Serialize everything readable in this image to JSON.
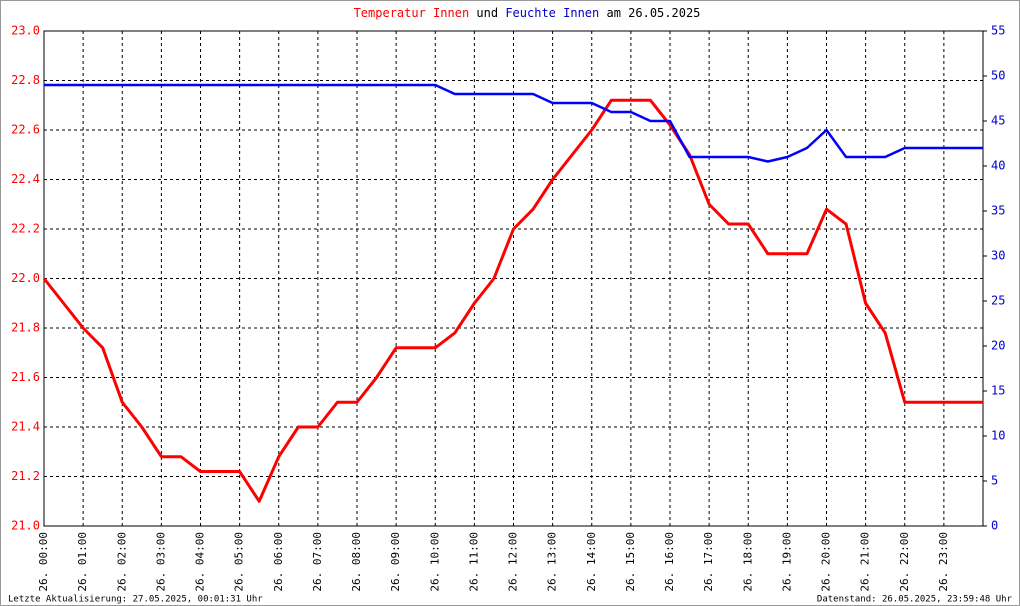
{
  "chart_data": {
    "type": "line",
    "title_connector": "und",
    "title_date": "am 26.05.2025",
    "footer_left": "Letzte Aktualisierung: 27.05.2025, 00:01:31 Uhr",
    "footer_right": "Datenstand: 26.05.2025, 23:59:48 Uhr",
    "x": [
      0,
      0.5,
      1,
      1.5,
      2,
      2.5,
      3,
      3.5,
      4,
      4.5,
      5,
      5.5,
      6,
      6.5,
      7,
      7.5,
      8,
      8.5,
      9,
      9.5,
      10,
      10.5,
      11,
      11.5,
      12,
      12.5,
      13,
      13.5,
      14,
      14.5,
      15,
      15.5,
      16,
      16.5,
      17,
      17.5,
      18,
      18.5,
      19,
      19.5,
      20,
      20.5,
      21,
      21.5,
      22,
      22.5,
      23,
      23.5,
      24
    ],
    "series": [
      {
        "name": "Temperatur Innen",
        "color": "#ff0000",
        "axis": "y",
        "values": [
          22.0,
          21.9,
          21.8,
          21.72,
          21.5,
          21.4,
          21.28,
          21.28,
          21.22,
          21.22,
          21.22,
          21.1,
          21.28,
          21.4,
          21.4,
          21.5,
          21.5,
          21.6,
          21.72,
          21.72,
          21.72,
          21.78,
          21.9,
          22.0,
          22.2,
          22.28,
          22.4,
          22.5,
          22.6,
          22.72,
          22.72,
          22.72,
          22.62,
          22.5,
          22.3,
          22.22,
          22.22,
          22.1,
          22.1,
          22.1,
          22.28,
          22.22,
          21.9,
          21.78,
          21.5,
          21.5,
          21.5,
          21.5,
          21.5
        ]
      },
      {
        "name": "Feuchte Innen",
        "color": "#0000ff",
        "axis": "y2",
        "values": [
          49,
          49,
          49,
          49,
          49,
          49,
          49,
          49,
          49,
          49,
          49,
          49,
          49,
          49,
          49,
          49,
          49,
          49,
          49,
          49,
          49,
          48,
          48,
          48,
          48,
          48,
          47,
          47,
          47,
          46,
          46,
          45,
          45,
          41,
          41,
          41,
          41,
          40.5,
          41,
          42,
          44,
          41,
          41,
          41,
          42,
          42,
          42,
          42,
          42
        ]
      }
    ],
    "xlim": [
      0,
      24
    ],
    "xticks": [
      {
        "value": 0,
        "label": "26. 00:00"
      },
      {
        "value": 1,
        "label": "26. 01:00"
      },
      {
        "value": 2,
        "label": "26. 02:00"
      },
      {
        "value": 3,
        "label": "26. 03:00"
      },
      {
        "value": 4,
        "label": "26. 04:00"
      },
      {
        "value": 5,
        "label": "26. 05:00"
      },
      {
        "value": 6,
        "label": "26. 06:00"
      },
      {
        "value": 7,
        "label": "26. 07:00"
      },
      {
        "value": 8,
        "label": "26. 08:00"
      },
      {
        "value": 9,
        "label": "26. 09:00"
      },
      {
        "value": 10,
        "label": "26. 10:00"
      },
      {
        "value": 11,
        "label": "26. 11:00"
      },
      {
        "value": 12,
        "label": "26. 12:00"
      },
      {
        "value": 13,
        "label": "26. 13:00"
      },
      {
        "value": 14,
        "label": "26. 14:00"
      },
      {
        "value": 15,
        "label": "26. 15:00"
      },
      {
        "value": 16,
        "label": "26. 16:00"
      },
      {
        "value": 17,
        "label": "26. 17:00"
      },
      {
        "value": 18,
        "label": "26. 18:00"
      },
      {
        "value": 19,
        "label": "26. 19:00"
      },
      {
        "value": 20,
        "label": "26. 20:00"
      },
      {
        "value": 21,
        "label": "26. 21:00"
      },
      {
        "value": 22,
        "label": "26. 22:00"
      },
      {
        "value": 23,
        "label": "26. 23:00"
      }
    ],
    "ylim": [
      21.0,
      23.0
    ],
    "yticks": [
      {
        "value": 21,
        "label": "21.0"
      },
      21.2,
      21.4,
      21.6,
      21.8,
      {
        "value": 22,
        "label": "22.0"
      },
      22.2,
      22.4,
      22.6,
      22.8,
      {
        "value": 23,
        "label": "23.0"
      }
    ],
    "y2lim": [
      0,
      55
    ],
    "y2ticks": [
      0,
      5,
      10,
      15,
      20,
      25,
      30,
      35,
      40,
      45,
      50,
      55
    ],
    "grid": true
  }
}
